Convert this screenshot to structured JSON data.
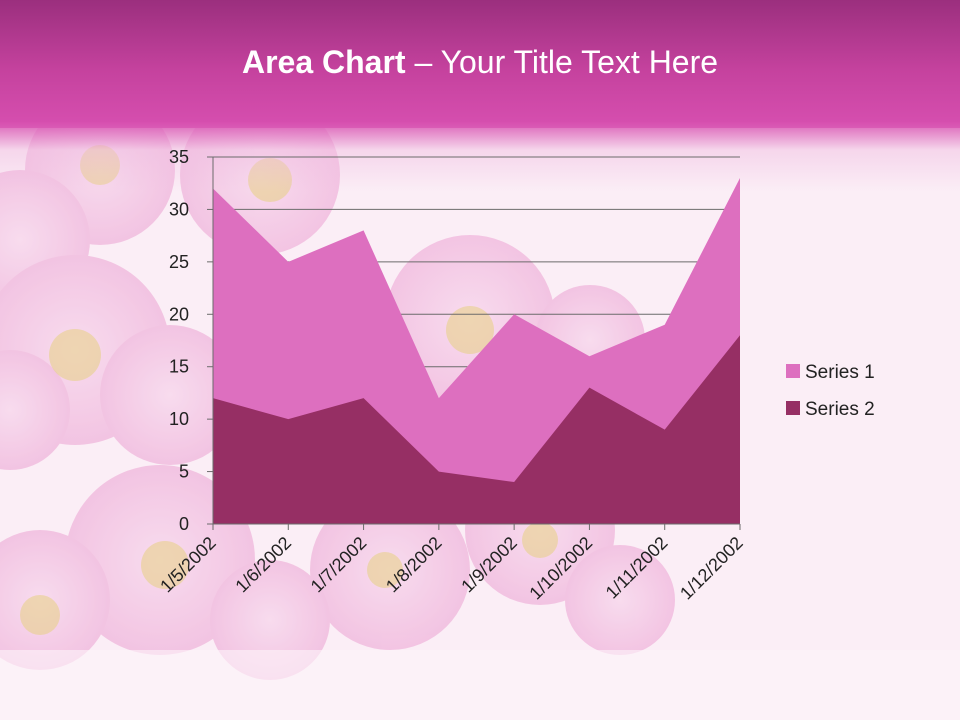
{
  "slide": {
    "title_bold": "Area Chart",
    "title_rest": " – Your Title Text Here"
  },
  "colors": {
    "header_top": "#9b2f7e",
    "header_bottom": "#d74fb0",
    "series1": "#dd6fbf",
    "series2": "#962f64",
    "gridline": "#6b6b6b"
  },
  "chart_data": {
    "type": "area",
    "categories": [
      "1/5/2002",
      "1/6/2002",
      "1/7/2002",
      "1/8/2002",
      "1/9/2002",
      "1/10/2002",
      "1/11/2002",
      "1/12/2002"
    ],
    "series": [
      {
        "name": "Series 1",
        "values": [
          32,
          25,
          28,
          12,
          20,
          16,
          19,
          33
        ]
      },
      {
        "name": "Series 2",
        "values": [
          12,
          10,
          12,
          5,
          4,
          13,
          9,
          18
        ]
      }
    ],
    "ylim": [
      0,
      35
    ],
    "yticks": [
      0,
      5,
      10,
      15,
      20,
      25,
      30,
      35
    ],
    "grid": true,
    "legend_position": "right"
  }
}
